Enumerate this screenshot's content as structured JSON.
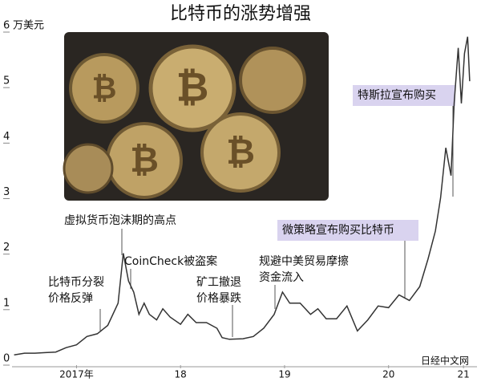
{
  "chart_data": {
    "type": "line",
    "title": "比特币的涨势增强",
    "y_label": "万美元",
    "x": [
      2016.9,
      2017.0,
      2017.1,
      2017.2,
      2017.3,
      2017.4,
      2017.5,
      2017.6,
      2017.7,
      2017.8,
      2017.9,
      2017.95,
      2018.0,
      2018.05,
      2018.1,
      2018.15,
      2018.2,
      2018.27,
      2018.33,
      2018.4,
      2018.5,
      2018.57,
      2018.65,
      2018.75,
      2018.85,
      2018.9,
      2018.97,
      2019.1,
      2019.2,
      2019.3,
      2019.4,
      2019.48,
      2019.55,
      2019.65,
      2019.75,
      2019.82,
      2019.9,
      2020.0,
      2020.1,
      2020.2,
      2020.3,
      2020.4,
      2020.5,
      2020.6,
      2020.7,
      2020.8,
      2020.88,
      2020.95,
      2021.0,
      2021.05,
      2021.1,
      2021.13,
      2021.17,
      2021.2,
      2021.23,
      2021.26,
      2021.28
    ],
    "series": [
      {
        "color": "#333333",
        "values": [
          0.07,
          0.1,
          0.1,
          0.11,
          0.12,
          0.2,
          0.25,
          0.4,
          0.45,
          0.6,
          1.0,
          1.9,
          1.4,
          1.2,
          0.8,
          1.0,
          0.8,
          0.7,
          0.9,
          0.75,
          0.62,
          0.8,
          0.65,
          0.65,
          0.55,
          0.38,
          0.35,
          0.36,
          0.4,
          0.55,
          0.8,
          1.2,
          1.0,
          1.0,
          0.8,
          0.9,
          0.72,
          0.72,
          0.95,
          0.5,
          0.7,
          0.95,
          0.92,
          1.15,
          1.05,
          1.3,
          1.8,
          2.3,
          2.9,
          3.8,
          3.3,
          4.6,
          5.6,
          4.6,
          5.5,
          5.8,
          5.0
        ]
      }
    ],
    "xlim": [
      2016.88,
      2021.35
    ],
    "xticks": [
      {
        "value": 2017.5,
        "label": "2017年"
      },
      {
        "value": 2018.5,
        "label": "18"
      },
      {
        "value": 2019.5,
        "label": "19"
      },
      {
        "value": 2020.5,
        "label": "20"
      },
      {
        "value": 2021.22,
        "label": "21"
      }
    ],
    "ylim": [
      0,
      6
    ],
    "yticks": [
      0,
      1,
      2,
      3,
      4,
      5,
      6
    ],
    "annotations": [
      {
        "lines": [
          "虚拟货币泡沫期的高点"
        ]
      },
      {
        "lines": [
          "比特币分裂",
          "价格反弹"
        ]
      },
      {
        "lines": [
          "CoinCheck被盗案"
        ]
      },
      {
        "lines": [
          "矿工撤退",
          "价格暴跌"
        ]
      },
      {
        "lines": [
          "规避中美贸易摩擦",
          "资金流入"
        ]
      },
      {
        "lines": [
          "微策略宣布购买比特币"
        ]
      },
      {
        "lines": [
          "特斯拉宣布购买"
        ]
      }
    ],
    "source": "日经中文网"
  }
}
